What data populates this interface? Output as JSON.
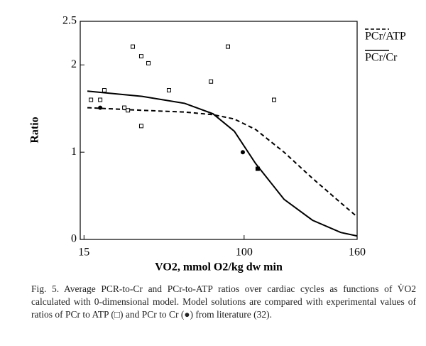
{
  "chart_data": {
    "type": "line",
    "xlabel": "VO2, mmol O2/kg dw min",
    "ylabel": "Ratio",
    "xlim": [
      13,
      160
    ],
    "xticks": [
      15,
      100,
      160
    ],
    "ylim": [
      0,
      2.5
    ],
    "yticks": [
      0,
      1,
      2,
      2.5
    ],
    "series": [
      {
        "name": "PCr/ATP",
        "style": "dashed",
        "color": "#000000",
        "x": [
          16.8,
          45.8,
          68.4,
          83.5,
          94.8,
          106.1,
          121.2,
          136.3,
          151.3,
          160
        ],
        "values": [
          1.51,
          1.48,
          1.46,
          1.43,
          1.38,
          1.26,
          1.0,
          0.7,
          0.42,
          0.26
        ]
      },
      {
        "name": "PCr/Cr",
        "style": "solid",
        "color": "#000000",
        "x": [
          16.8,
          45.8,
          68.4,
          83.5,
          94.8,
          106.1,
          121.2,
          136.3,
          151.3,
          160
        ],
        "values": [
          1.7,
          1.64,
          1.56,
          1.44,
          1.24,
          0.87,
          0.46,
          0.22,
          0.08,
          0.04
        ]
      }
    ],
    "experimental": [
      {
        "marker": "square",
        "x": [
          18.7,
          23.6,
          25.8,
          36.4,
          38.3,
          40.9,
          45.4,
          45.4,
          49.2,
          60.1,
          82.4,
          91.4,
          107.2,
          115.9
        ],
        "values": [
          1.6,
          1.6,
          1.71,
          1.51,
          1.48,
          2.21,
          2.1,
          1.3,
          2.02,
          1.71,
          1.81,
          2.21,
          0.81,
          1.6
        ]
      },
      {
        "marker": "circle",
        "x": [
          23.6,
          99.3,
          107.2
        ],
        "values": [
          1.51,
          1.0,
          0.81
        ]
      }
    ]
  },
  "caption": "Fig. 5.  Average PCR-to-Cr and PCr-to-ATP ratios over cardiac cycles as functions of V̇O2 calculated with 0-dimensional model. Model solutions are compared with experimental values of ratios of PCr to ATP (□) and PCr to Cr (●) from literature (32)."
}
